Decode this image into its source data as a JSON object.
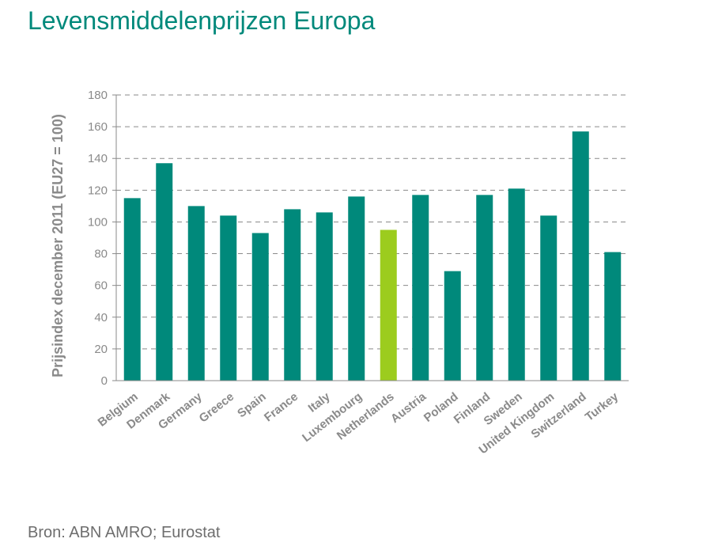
{
  "page": {
    "title": "Levensmiddelenprijzen Europa",
    "source": "Bron: ABN AMRO; Eurostat"
  },
  "chart_data": {
    "type": "bar",
    "ylabel": "Prijsindex december 2011 (EU27 = 100)",
    "xlabel": "",
    "ylim": [
      0,
      180
    ],
    "yticks": [
      0,
      20,
      40,
      60,
      80,
      100,
      120,
      140,
      160,
      180
    ],
    "grid": true,
    "categories": [
      "Belgium",
      "Denmark",
      "Germany",
      "Greece",
      "Spain",
      "France",
      "Italy",
      "Luxembourg",
      "Netherlands",
      "Austria",
      "Poland",
      "Finland",
      "Sweden",
      "United Kingdom",
      "Switzerland",
      "Turkey"
    ],
    "values": [
      115,
      137,
      110,
      104,
      93,
      108,
      106,
      116,
      95,
      117,
      69,
      117,
      121,
      104,
      157,
      81
    ],
    "colors": {
      "default": "#00897b",
      "highlight": "#9ccc1e",
      "highlight_category": "Netherlands",
      "title": "#00897b",
      "axis": "#8a8a8a",
      "grid": "#8a8a8a"
    }
  }
}
